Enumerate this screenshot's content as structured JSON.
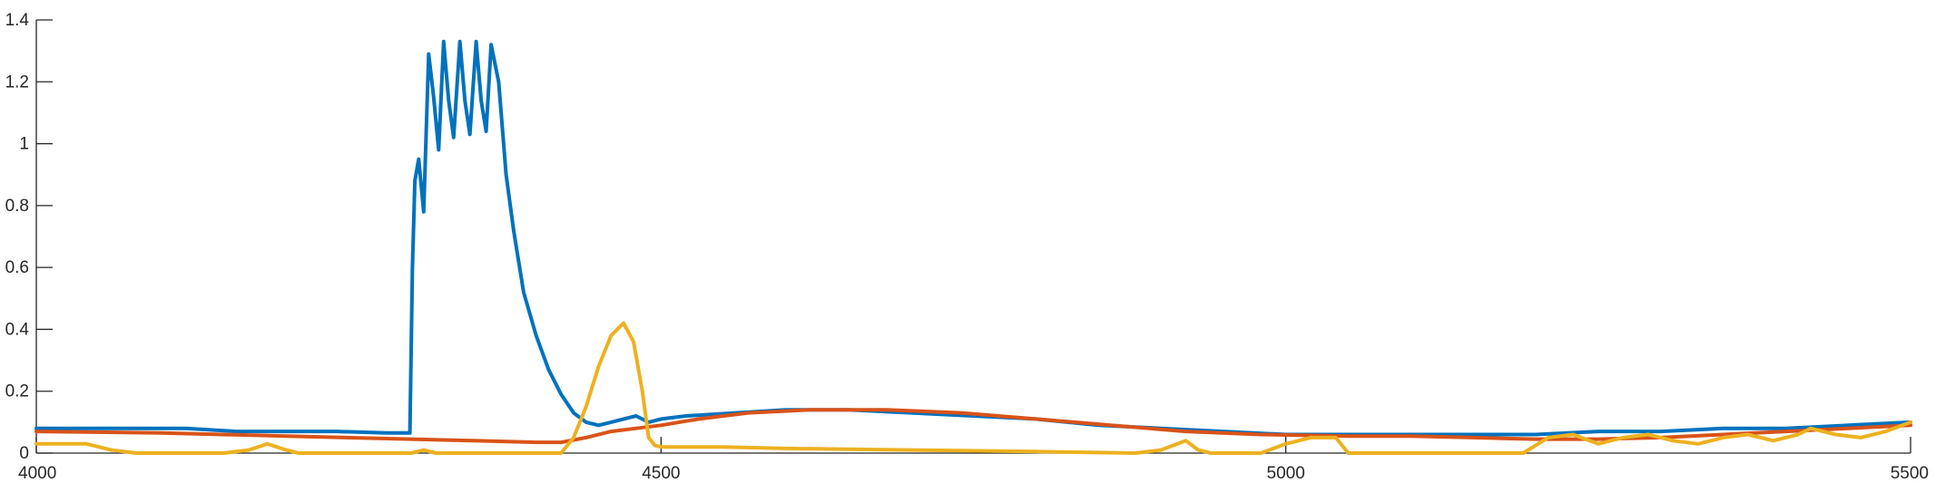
{
  "chart_data": {
    "type": "line",
    "title": "",
    "xlabel": "",
    "ylabel": "",
    "xlim": [
      4000,
      5500
    ],
    "ylim": [
      0,
      1.4
    ],
    "grid": false,
    "legend": "none",
    "x_ticks": [
      4000,
      4500,
      5000,
      5500
    ],
    "x_tick_labels": [
      "4000",
      "4500",
      "5000",
      "5500"
    ],
    "y_ticks": [
      0,
      0.2,
      0.4,
      0.6,
      0.8,
      1,
      1.2,
      1.4
    ],
    "y_tick_labels": [
      "0",
      "0.2",
      "0.4",
      "0.6",
      "0.8",
      "1",
      "1.2",
      "1.4"
    ],
    "series": [
      {
        "color": "#0072BD",
        "points": [
          [
            4000,
            0.08
          ],
          [
            4040,
            0.08
          ],
          [
            4080,
            0.08
          ],
          [
            4120,
            0.08
          ],
          [
            4160,
            0.07
          ],
          [
            4200,
            0.07
          ],
          [
            4240,
            0.07
          ],
          [
            4280,
            0.065
          ],
          [
            4299,
            0.065
          ],
          [
            4301,
            0.6
          ],
          [
            4303,
            0.88
          ],
          [
            4306,
            0.95
          ],
          [
            4310,
            0.78
          ],
          [
            4314,
            1.29
          ],
          [
            4318,
            1.15
          ],
          [
            4322,
            0.98
          ],
          [
            4326,
            1.33
          ],
          [
            4330,
            1.14
          ],
          [
            4334,
            1.02
          ],
          [
            4339,
            1.33
          ],
          [
            4343,
            1.14
          ],
          [
            4347,
            1.03
          ],
          [
            4352,
            1.33
          ],
          [
            4356,
            1.14
          ],
          [
            4360,
            1.04
          ],
          [
            4364,
            1.32
          ],
          [
            4370,
            1.2
          ],
          [
            4376,
            0.9
          ],
          [
            4382,
            0.72
          ],
          [
            4390,
            0.52
          ],
          [
            4400,
            0.38
          ],
          [
            4410,
            0.27
          ],
          [
            4420,
            0.19
          ],
          [
            4430,
            0.13
          ],
          [
            4440,
            0.1
          ],
          [
            4450,
            0.09
          ],
          [
            4460,
            0.1
          ],
          [
            4470,
            0.11
          ],
          [
            4480,
            0.12
          ],
          [
            4490,
            0.1
          ],
          [
            4500,
            0.11
          ],
          [
            4520,
            0.12
          ],
          [
            4560,
            0.13
          ],
          [
            4600,
            0.14
          ],
          [
            4650,
            0.14
          ],
          [
            4700,
            0.13
          ],
          [
            4750,
            0.12
          ],
          [
            4800,
            0.11
          ],
          [
            4850,
            0.09
          ],
          [
            4900,
            0.08
          ],
          [
            4950,
            0.07
          ],
          [
            5000,
            0.06
          ],
          [
            5050,
            0.06
          ],
          [
            5100,
            0.06
          ],
          [
            5150,
            0.06
          ],
          [
            5200,
            0.06
          ],
          [
            5250,
            0.07
          ],
          [
            5300,
            0.07
          ],
          [
            5350,
            0.08
          ],
          [
            5400,
            0.08
          ],
          [
            5450,
            0.09
          ],
          [
            5500,
            0.1
          ]
        ]
      },
      {
        "color": "#D95319",
        "points": [
          [
            4000,
            0.07
          ],
          [
            4100,
            0.065
          ],
          [
            4200,
            0.055
          ],
          [
            4300,
            0.045
          ],
          [
            4350,
            0.04
          ],
          [
            4400,
            0.035
          ],
          [
            4420,
            0.035
          ],
          [
            4440,
            0.05
          ],
          [
            4460,
            0.07
          ],
          [
            4480,
            0.08
          ],
          [
            4500,
            0.09
          ],
          [
            4530,
            0.11
          ],
          [
            4570,
            0.13
          ],
          [
            4620,
            0.14
          ],
          [
            4680,
            0.14
          ],
          [
            4740,
            0.13
          ],
          [
            4800,
            0.11
          ],
          [
            4860,
            0.09
          ],
          [
            4920,
            0.07
          ],
          [
            4980,
            0.06
          ],
          [
            5050,
            0.055
          ],
          [
            5100,
            0.055
          ],
          [
            5150,
            0.05
          ],
          [
            5200,
            0.045
          ],
          [
            5250,
            0.045
          ],
          [
            5300,
            0.05
          ],
          [
            5350,
            0.06
          ],
          [
            5400,
            0.07
          ],
          [
            5450,
            0.08
          ],
          [
            5500,
            0.09
          ]
        ]
      },
      {
        "color": "#EDB120",
        "points": [
          [
            4000,
            0.03
          ],
          [
            4020,
            0.03
          ],
          [
            4040,
            0.03
          ],
          [
            4060,
            0.01
          ],
          [
            4080,
            0.0
          ],
          [
            4150,
            0.0
          ],
          [
            4170,
            0.01
          ],
          [
            4185,
            0.03
          ],
          [
            4200,
            0.01
          ],
          [
            4210,
            0.0
          ],
          [
            4300,
            0.0
          ],
          [
            4310,
            0.01
          ],
          [
            4320,
            0.0
          ],
          [
            4420,
            0.0
          ],
          [
            4430,
            0.05
          ],
          [
            4440,
            0.15
          ],
          [
            4450,
            0.28
          ],
          [
            4460,
            0.38
          ],
          [
            4470,
            0.42
          ],
          [
            4478,
            0.36
          ],
          [
            4485,
            0.2
          ],
          [
            4490,
            0.05
          ],
          [
            4495,
            0.025
          ],
          [
            4500,
            0.02
          ],
          [
            4550,
            0.02
          ],
          [
            4600,
            0.015
          ],
          [
            4700,
            0.01
          ],
          [
            4800,
            0.005
          ],
          [
            4880,
            0.0
          ],
          [
            4900,
            0.01
          ],
          [
            4920,
            0.04
          ],
          [
            4930,
            0.01
          ],
          [
            4940,
            0.0
          ],
          [
            4980,
            0.0
          ],
          [
            5000,
            0.03
          ],
          [
            5020,
            0.05
          ],
          [
            5040,
            0.05
          ],
          [
            5050,
            0.0
          ],
          [
            5190,
            0.0
          ],
          [
            5210,
            0.05
          ],
          [
            5230,
            0.06
          ],
          [
            5250,
            0.03
          ],
          [
            5270,
            0.05
          ],
          [
            5290,
            0.06
          ],
          [
            5310,
            0.04
          ],
          [
            5330,
            0.03
          ],
          [
            5350,
            0.05
          ],
          [
            5370,
            0.06
          ],
          [
            5390,
            0.04
          ],
          [
            5410,
            0.06
          ],
          [
            5420,
            0.08
          ],
          [
            5440,
            0.06
          ],
          [
            5460,
            0.05
          ],
          [
            5480,
            0.07
          ],
          [
            5500,
            0.1
          ]
        ]
      }
    ]
  }
}
